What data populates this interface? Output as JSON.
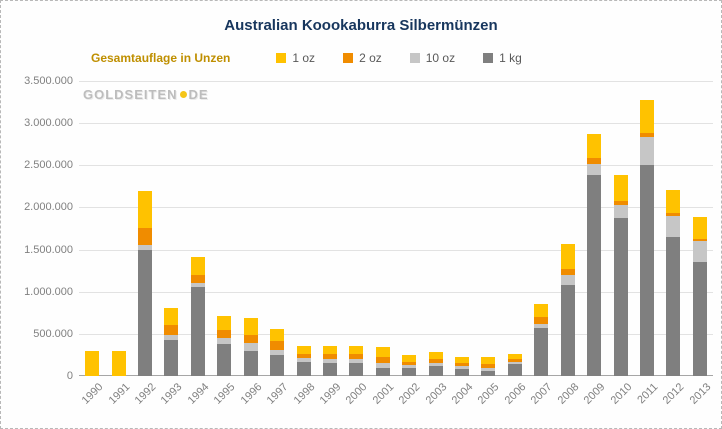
{
  "title": "Australian Koookaburra Silbermünzen",
  "legend": {
    "label": "Gesamtauflage in Unzen",
    "items": [
      {
        "label": "1 oz",
        "color": "#ffc200"
      },
      {
        "label": "2 oz",
        "color": "#f08c00"
      },
      {
        "label": "10 oz",
        "color": "#c6c6c6"
      },
      {
        "label": "1 kg",
        "color": "#7f7f7f"
      }
    ]
  },
  "watermark": {
    "part1": "GOLDSEITEN",
    "part2": "DE"
  },
  "chart_data": {
    "type": "bar",
    "stacked": true,
    "title": "Australian Koookaburra Silbermünzen",
    "legend_title": "Gesamtauflage in Unzen",
    "legend_position": "top",
    "grid": true,
    "xlabel": "",
    "ylabel": "",
    "ylim": [
      0,
      3500000
    ],
    "ytick_step": 500000,
    "ytick_labels": [
      "0",
      "500.000",
      "1.000.000",
      "1.500.000",
      "2.000.000",
      "2.500.000",
      "3.000.000",
      "3.500.000"
    ],
    "categories": [
      "1990",
      "1991",
      "1992",
      "1993",
      "1994",
      "1995",
      "1996",
      "1997",
      "1998",
      "1999",
      "2000",
      "2001",
      "2002",
      "2003",
      "2004",
      "2005",
      "2006",
      "2007",
      "2008",
      "2009",
      "2010",
      "2011",
      "2012",
      "2013"
    ],
    "series": [
      {
        "name": "1 kg",
        "color": "#7f7f7f",
        "values": [
          0,
          0,
          1500000,
          430000,
          1050000,
          380000,
          300000,
          250000,
          170000,
          160000,
          150000,
          100000,
          90000,
          120000,
          80000,
          60000,
          140000,
          570000,
          1080000,
          2380000,
          1880000,
          2500000,
          1650000,
          1350000
        ]
      },
      {
        "name": "10 oz",
        "color": "#c6c6c6",
        "values": [
          0,
          0,
          50000,
          60000,
          50000,
          70000,
          90000,
          60000,
          40000,
          40000,
          50000,
          60000,
          40000,
          40000,
          40000,
          40000,
          30000,
          50000,
          120000,
          130000,
          150000,
          330000,
          250000,
          250000
        ]
      },
      {
        "name": "2 oz",
        "color": "#f08c00",
        "values": [
          0,
          0,
          200000,
          120000,
          100000,
          100000,
          100000,
          100000,
          50000,
          60000,
          60000,
          60000,
          40000,
          40000,
          30000,
          40000,
          30000,
          80000,
          70000,
          80000,
          50000,
          50000,
          30000,
          30000
        ]
      },
      {
        "name": "1 oz",
        "color": "#ffc200",
        "values": [
          300000,
          300000,
          450000,
          200000,
          210000,
          160000,
          200000,
          150000,
          100000,
          100000,
          100000,
          120000,
          80000,
          80000,
          80000,
          90000,
          60000,
          150000,
          300000,
          280000,
          300000,
          400000,
          280000,
          260000
        ]
      }
    ]
  }
}
